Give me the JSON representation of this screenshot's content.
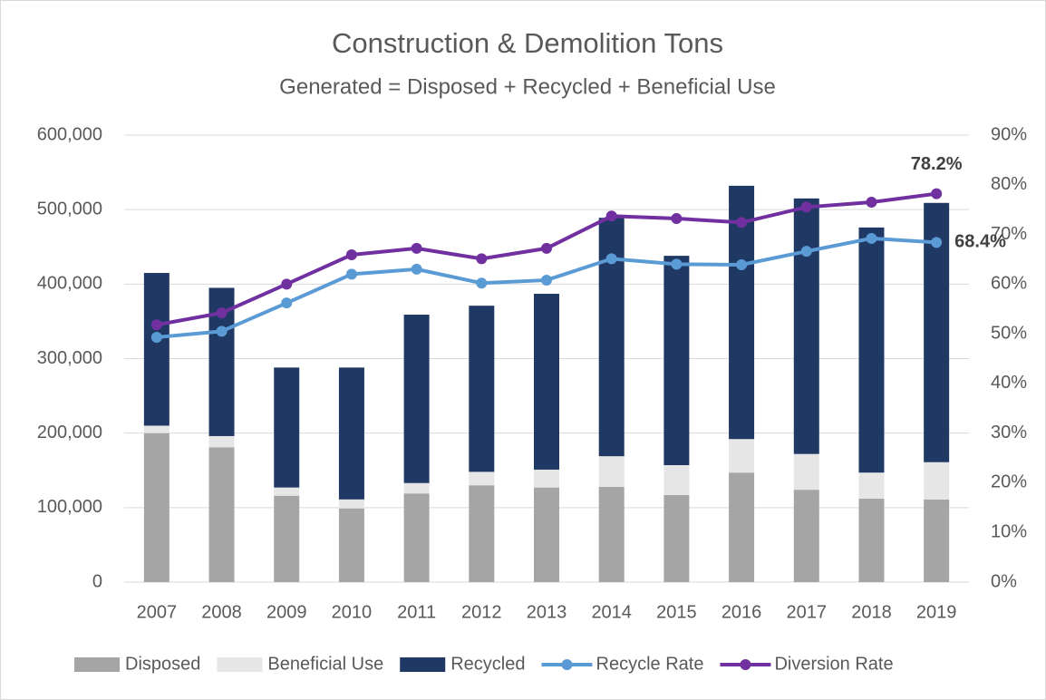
{
  "chart_data": {
    "type": "bar",
    "title": "Construction & Demolition Tons",
    "subtitle": "Generated = Disposed + Recycled + Beneficial Use",
    "categories": [
      "2007",
      "2008",
      "2009",
      "2010",
      "2011",
      "2012",
      "2013",
      "2014",
      "2015",
      "2016",
      "2017",
      "2018",
      "2019"
    ],
    "series": [
      {
        "name": "Disposed",
        "type": "bar",
        "color": "#a5a5a5",
        "values": [
          200000,
          181000,
          116000,
          99000,
          119000,
          130000,
          127000,
          128000,
          117000,
          147000,
          124000,
          112000,
          111000
        ]
      },
      {
        "name": "Beneficial Use",
        "type": "bar",
        "color": "#e7e6e6",
        "values": [
          10000,
          15000,
          11000,
          12000,
          14000,
          18000,
          24000,
          41000,
          40000,
          45000,
          48000,
          35000,
          50000
        ]
      },
      {
        "name": "Recycled",
        "type": "bar",
        "color": "#203864",
        "values": [
          205000,
          199000,
          161000,
          177000,
          226000,
          223000,
          236000,
          320000,
          281000,
          340000,
          343000,
          329000,
          348000
        ]
      },
      {
        "name": "Recycle Rate",
        "type": "line",
        "axis": "y2",
        "color": "#5b9bd5",
        "values": [
          49.3,
          50.5,
          56.2,
          62.0,
          63.0,
          60.2,
          60.8,
          65.1,
          64.0,
          63.9,
          66.6,
          69.2,
          68.4
        ],
        "value_labels": [
          null,
          null,
          null,
          null,
          null,
          null,
          null,
          null,
          null,
          null,
          null,
          null,
          "68.4%"
        ]
      },
      {
        "name": "Diversion Rate",
        "type": "line",
        "axis": "y2",
        "color": "#7030a0",
        "values": [
          51.8,
          54.2,
          60.0,
          65.9,
          67.2,
          65.1,
          67.2,
          73.7,
          73.2,
          72.4,
          75.5,
          76.5,
          78.2
        ],
        "value_labels": [
          null,
          null,
          null,
          null,
          null,
          null,
          null,
          null,
          null,
          null,
          null,
          null,
          "78.2%"
        ]
      }
    ],
    "ylim": [
      0,
      600000
    ],
    "yticks": [
      0,
      {
        "value": 100000,
        "label": "100,000"
      },
      {
        "value": 200000,
        "label": "200,000"
      },
      {
        "value": 300000,
        "label": "300,000"
      },
      {
        "value": 400000,
        "label": "400,000"
      },
      {
        "value": 500000,
        "label": "500,000"
      },
      {
        "value": 600000,
        "label": "600,000"
      }
    ],
    "y2lim": [
      0,
      90
    ],
    "y2ticks": [
      {
        "value": 0,
        "label": "0%"
      },
      {
        "value": 10,
        "label": "10%"
      },
      {
        "value": 20,
        "label": "20%"
      },
      {
        "value": 30,
        "label": "30%"
      },
      {
        "value": 40,
        "label": "40%"
      },
      {
        "value": 50,
        "label": "50%"
      },
      {
        "value": 60,
        "label": "60%"
      },
      {
        "value": 70,
        "label": "70%"
      },
      {
        "value": 80,
        "label": "80%"
      },
      {
        "value": 90,
        "label": "90%"
      }
    ],
    "grid": true,
    "legend": "bottom"
  }
}
